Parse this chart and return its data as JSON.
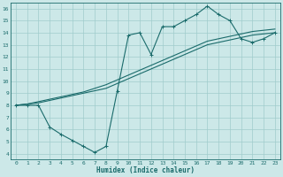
{
  "bg_color": "#cce8e8",
  "grid_color": "#a0cccc",
  "line_color": "#1a6b6b",
  "line1_x": [
    0,
    1,
    2,
    3,
    4,
    5,
    6,
    7,
    8,
    9,
    10,
    11,
    12,
    13,
    14,
    15,
    16,
    17,
    18,
    19,
    20,
    21,
    22,
    23
  ],
  "line1_y": [
    8.0,
    8.1,
    8.2,
    8.4,
    8.6,
    8.8,
    9.0,
    9.2,
    9.4,
    9.8,
    10.2,
    10.6,
    11.0,
    11.4,
    11.8,
    12.2,
    12.6,
    13.0,
    13.2,
    13.4,
    13.6,
    13.8,
    13.9,
    14.0
  ],
  "line2_x": [
    0,
    1,
    2,
    3,
    4,
    5,
    6,
    7,
    8,
    9,
    10,
    11,
    12,
    13,
    14,
    15,
    16,
    17,
    18,
    19,
    20,
    21,
    22,
    23
  ],
  "line2_y": [
    8.0,
    8.1,
    8.3,
    8.5,
    8.7,
    8.9,
    9.1,
    9.4,
    9.7,
    10.1,
    10.5,
    10.9,
    11.3,
    11.7,
    12.1,
    12.5,
    12.9,
    13.3,
    13.5,
    13.7,
    13.9,
    14.1,
    14.2,
    14.3
  ],
  "line3_x": [
    0,
    1,
    2,
    3,
    4,
    5,
    6,
    7,
    8,
    9,
    10,
    11,
    12,
    13,
    14,
    15,
    16,
    17,
    18,
    19,
    20,
    21,
    22,
    23
  ],
  "line3_y": [
    8.0,
    8.0,
    8.0,
    6.2,
    5.6,
    5.1,
    4.6,
    4.1,
    4.6,
    9.2,
    13.8,
    14.0,
    12.2,
    14.5,
    14.5,
    15.0,
    15.5,
    16.2,
    15.5,
    15.0,
    13.5,
    13.2,
    13.5,
    14.0
  ],
  "xlabel": "Humidex (Indice chaleur)",
  "xlim": [
    -0.5,
    23.5
  ],
  "ylim": [
    3.5,
    16.5
  ],
  "xticks": [
    0,
    1,
    2,
    3,
    4,
    5,
    6,
    7,
    8,
    9,
    10,
    11,
    12,
    13,
    14,
    15,
    16,
    17,
    18,
    19,
    20,
    21,
    22,
    23
  ],
  "yticks": [
    4,
    5,
    6,
    7,
    8,
    9,
    10,
    11,
    12,
    13,
    14,
    15,
    16
  ]
}
